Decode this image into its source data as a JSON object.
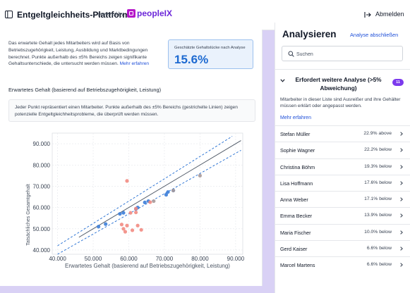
{
  "header": {
    "title": "Entgeltgleichheits-Plattform",
    "powered_by": "powered by",
    "brand": "peopleIX",
    "logout_label": "Abmelden"
  },
  "intro": {
    "text": "Das erwartete Gehalt jedes Mitarbeiters wird auf Basis von Betriebszugehörigkeit, Leistung, Ausbildung und Marktbedingungen berechnet. Punkte außerhalb des ±5% Bereichs zeigen signifikante Gehaltsunterschiede, die untersucht werden müssen.",
    "more_link": "Mehr erfahren"
  },
  "gap_card": {
    "label": "Geschätzte Gehaltslücke nach Analyse",
    "value": "15.6%"
  },
  "section": {
    "title": "Erwartetes Gehalt (basierend auf Betriebszugehörigkeit, Leistung)",
    "hint": "Jeder Punkt repräsentiert einen Mitarbeiter. Punkte außerhalb des ±5% Bereichs (gestrichelte Linien) zeigen potenzielle Entgeltgleichheitsprobleme, die überprüft werden müssen."
  },
  "chart_data": {
    "type": "scatter",
    "xlabel": "Erwartetes Gehalt (basierend auf Betriebszugehörigkeit, Leistung)",
    "ylabel": "Tatsächliches Gesamtgehalt",
    "xlim": [
      38500,
      92000
    ],
    "ylim": [
      38000,
      95000
    ],
    "x_ticks": [
      40000,
      50000,
      60000,
      70000,
      80000,
      90000
    ],
    "x_tick_labels": [
      "40.000",
      "50.000",
      "60.000",
      "70.000",
      "80.000",
      "90.000"
    ],
    "y_ticks": [
      40000,
      50000,
      60000,
      70000,
      80000,
      90000
    ],
    "y_tick_labels": [
      "40.000",
      "50.000",
      "60.000",
      "70.000",
      "80.000",
      "90.000"
    ],
    "grid": true,
    "reference_lines": {
      "center_multiplier": 1.0,
      "band_multipliers": [
        0.95,
        1.05
      ]
    },
    "series": [
      {
        "color": "#3b7dd8",
        "points": [
          [
            51500,
            51000
          ],
          [
            53500,
            52200
          ],
          [
            57500,
            57000
          ],
          [
            58500,
            57500
          ],
          [
            62000,
            59300
          ],
          [
            62500,
            60000
          ],
          [
            64500,
            62400
          ],
          [
            65500,
            63000
          ],
          [
            70500,
            66000
          ],
          [
            71000,
            67300
          ],
          [
            72500,
            68000
          ]
        ]
      },
      {
        "color": "#f28b82",
        "points": [
          [
            58000,
            52000
          ],
          [
            58500,
            50000
          ],
          [
            59000,
            48600
          ],
          [
            59500,
            51500
          ],
          [
            61000,
            49300
          ],
          [
            62000,
            57700
          ],
          [
            62500,
            51500
          ],
          [
            63500,
            49500
          ],
          [
            59500,
            72500
          ],
          [
            60500,
            57500
          ],
          [
            62000,
            59500
          ],
          [
            66000,
            62500
          ]
        ]
      },
      {
        "color": "#a89a9a",
        "points": [
          [
            80000,
            75000
          ],
          [
            72500,
            68000
          ],
          [
            67000,
            63000
          ]
        ]
      }
    ]
  },
  "panel": {
    "title": "Analysieren",
    "action": "Analyse abschließen",
    "search_placeholder": "Suchen",
    "group": {
      "title": "Erfordert weitere Analyse (>5% Abweichung)",
      "count": "11",
      "description": "Mitarbeiter in dieser Liste sind Ausreißer und ihre Gehälter müssen erklärt oder angepasst werden.",
      "more_link": "Mehr erfahren"
    },
    "employees": [
      {
        "name": "Stefan Müller",
        "deviation": "22.9% above"
      },
      {
        "name": "Sophie Wagner",
        "deviation": "22.2% below"
      },
      {
        "name": "Christina Böhm",
        "deviation": "19.3% below"
      },
      {
        "name": "Lisa Hoffmann",
        "deviation": "17.6% below"
      },
      {
        "name": "Anna Weber",
        "deviation": "17.1% below"
      },
      {
        "name": "Emma Becker",
        "deviation": "13.9% below"
      },
      {
        "name": "Maria Fischer",
        "deviation": "10.0% below"
      },
      {
        "name": "Gerd Kaiser",
        "deviation": "6.6% below"
      },
      {
        "name": "Marcel Martens",
        "deviation": "6.6% below"
      }
    ]
  },
  "colors": {
    "accent": "#1d4ed8",
    "brand": "#6d28d9",
    "badge": "#7c3aed",
    "gap_value": "#1d6ad1",
    "background": "#d9d1f5"
  },
  "icons": {
    "sidebar_toggle": "sidebar-toggle-icon",
    "logout": "logout-icon",
    "search": "search-icon",
    "chevron_down": "chevron-down-icon",
    "chevron_right": "chevron-right-icon"
  }
}
